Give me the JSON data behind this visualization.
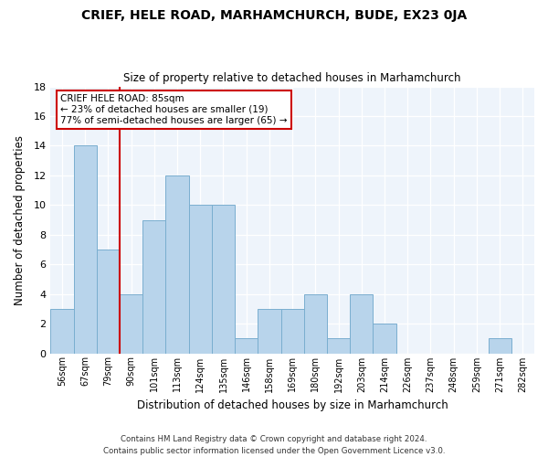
{
  "title": "CRIEF, HELE ROAD, MARHAMCHURCH, BUDE, EX23 0JA",
  "subtitle": "Size of property relative to detached houses in Marhamchurch",
  "xlabel": "Distribution of detached houses by size in Marhamchurch",
  "ylabel": "Number of detached properties",
  "bin_labels": [
    "56sqm",
    "67sqm",
    "79sqm",
    "90sqm",
    "101sqm",
    "113sqm",
    "124sqm",
    "135sqm",
    "146sqm",
    "158sqm",
    "169sqm",
    "180sqm",
    "192sqm",
    "203sqm",
    "214sqm",
    "226sqm",
    "237sqm",
    "248sqm",
    "259sqm",
    "271sqm",
    "282sqm"
  ],
  "bar_heights": [
    3,
    14,
    7,
    4,
    9,
    12,
    10,
    10,
    1,
    3,
    3,
    4,
    1,
    4,
    2,
    0,
    0,
    0,
    0,
    1,
    0
  ],
  "bar_color": "#b8d4eb",
  "bar_edge_color": "#7aaecf",
  "vline_x_index": 3,
  "vline_color": "#cc0000",
  "annotation_title": "CRIEF HELE ROAD: 85sqm",
  "annotation_line1": "← 23% of detached houses are smaller (19)",
  "annotation_line2": "77% of semi-detached houses are larger (65) →",
  "annotation_box_color": "#cc0000",
  "ylim": [
    0,
    18
  ],
  "yticks": [
    0,
    2,
    4,
    6,
    8,
    10,
    12,
    14,
    16,
    18
  ],
  "footer_line1": "Contains HM Land Registry data © Crown copyright and database right 2024.",
  "footer_line2": "Contains public sector information licensed under the Open Government Licence v3.0.",
  "bg_color": "#eef4fb"
}
